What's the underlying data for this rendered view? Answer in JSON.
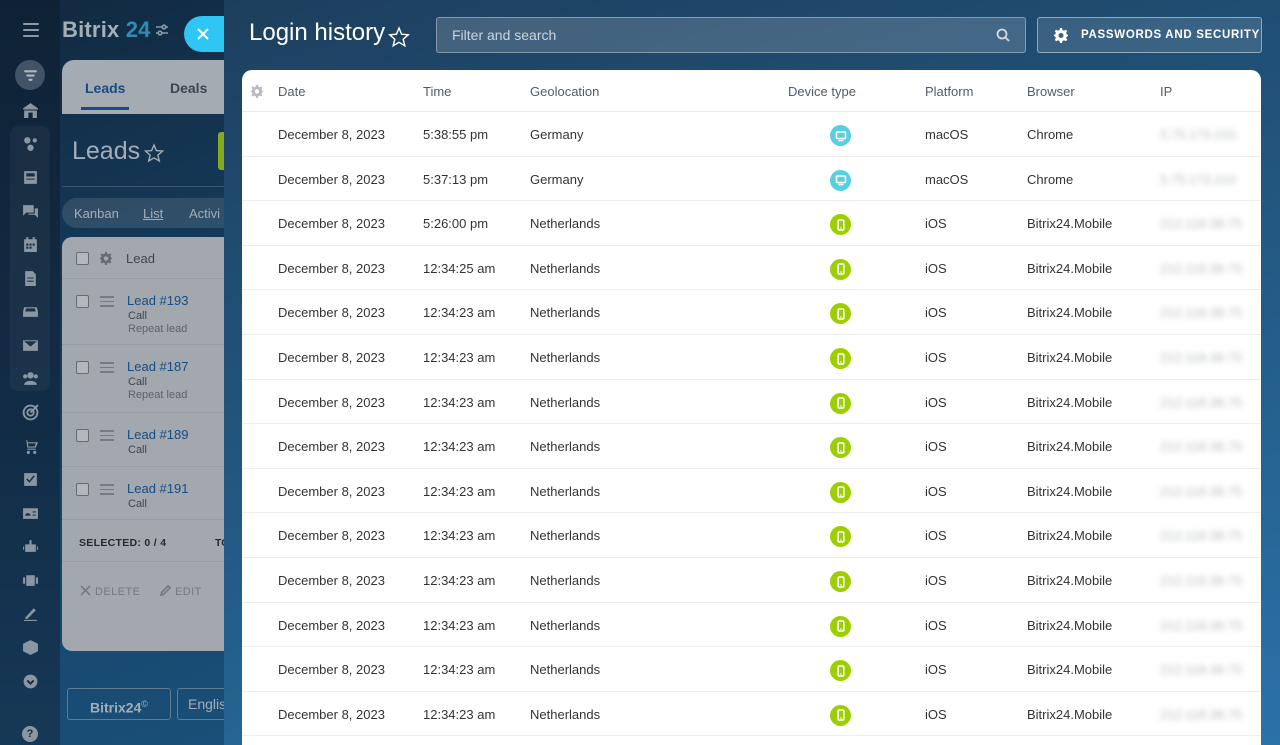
{
  "rail": {
    "icons": [
      "menu-icon",
      "filter-icon",
      "home-icon",
      "crm-icon",
      "feed-icon",
      "chat-icon",
      "calendar-icon",
      "document-icon",
      "inbox-icon",
      "mail-icon",
      "contacts-icon",
      "target-icon",
      "cart-icon",
      "tasks-icon",
      "contact-card-icon",
      "robot-icon",
      "video-icon",
      "signature-icon",
      "cube-icon",
      "more-icon",
      "help-icon"
    ]
  },
  "background": {
    "brand_name": "Bitrix",
    "brand_num": "24",
    "tabs": [
      "Leads",
      "Deals"
    ],
    "page_title": "Leads",
    "views": [
      "Kanban",
      "List",
      "Activi"
    ],
    "grid_header": "Lead",
    "leads": [
      {
        "name": "Lead #193",
        "sub1": "Call",
        "sub2": "Repeat lead"
      },
      {
        "name": "Lead #187",
        "sub1": "Call",
        "sub2": "Repeat lead"
      },
      {
        "name": "Lead #189",
        "sub1": "Call",
        "sub2": ""
      },
      {
        "name": "Lead #191",
        "sub1": "Call",
        "sub2": ""
      }
    ],
    "selected": "SELECTED: 0 / 4",
    "total_fragment": "TO",
    "delete_label": "DELETE",
    "edit_label": "EDIT",
    "footer_brand": "Bitrix24",
    "footer_brand_mark": "©",
    "footer_lang": "Englis",
    "help": "?"
  },
  "slider": {
    "title": "Login history",
    "search_placeholder": "Filter and search",
    "security_button": "PASSWORDS AND SECURITY",
    "columns": [
      "Date",
      "Time",
      "Geolocation",
      "Device type",
      "Platform",
      "Browser",
      "IP"
    ],
    "rows": [
      {
        "date": "December 8, 2023",
        "time": "5:38:55 pm",
        "geo": "Germany",
        "device": "desktop",
        "platform": "macOS",
        "browser": "Chrome",
        "ip": "5.75.173.210"
      },
      {
        "date": "December 8, 2023",
        "time": "5:37:13 pm",
        "geo": "Germany",
        "device": "desktop",
        "platform": "macOS",
        "browser": "Chrome",
        "ip": "5.75.173.210"
      },
      {
        "date": "December 8, 2023",
        "time": "5:26:00 pm",
        "geo": "Netherlands",
        "device": "mobile",
        "platform": "iOS",
        "browser": "Bitrix24.Mobile",
        "ip": "212.118.38.75"
      },
      {
        "date": "December 8, 2023",
        "time": "12:34:25 am",
        "geo": "Netherlands",
        "device": "mobile",
        "platform": "iOS",
        "browser": "Bitrix24.Mobile",
        "ip": "212.118.38.75"
      },
      {
        "date": "December 8, 2023",
        "time": "12:34:23 am",
        "geo": "Netherlands",
        "device": "mobile",
        "platform": "iOS",
        "browser": "Bitrix24.Mobile",
        "ip": "212.118.38.75"
      },
      {
        "date": "December 8, 2023",
        "time": "12:34:23 am",
        "geo": "Netherlands",
        "device": "mobile",
        "platform": "iOS",
        "browser": "Bitrix24.Mobile",
        "ip": "212.118.38.75"
      },
      {
        "date": "December 8, 2023",
        "time": "12:34:23 am",
        "geo": "Netherlands",
        "device": "mobile",
        "platform": "iOS",
        "browser": "Bitrix24.Mobile",
        "ip": "212.118.38.75"
      },
      {
        "date": "December 8, 2023",
        "time": "12:34:23 am",
        "geo": "Netherlands",
        "device": "mobile",
        "platform": "iOS",
        "browser": "Bitrix24.Mobile",
        "ip": "212.118.38.75"
      },
      {
        "date": "December 8, 2023",
        "time": "12:34:23 am",
        "geo": "Netherlands",
        "device": "mobile",
        "platform": "iOS",
        "browser": "Bitrix24.Mobile",
        "ip": "212.118.38.75"
      },
      {
        "date": "December 8, 2023",
        "time": "12:34:23 am",
        "geo": "Netherlands",
        "device": "mobile",
        "platform": "iOS",
        "browser": "Bitrix24.Mobile",
        "ip": "212.118.38.75"
      },
      {
        "date": "December 8, 2023",
        "time": "12:34:23 am",
        "geo": "Netherlands",
        "device": "mobile",
        "platform": "iOS",
        "browser": "Bitrix24.Mobile",
        "ip": "212.118.38.75"
      },
      {
        "date": "December 8, 2023",
        "time": "12:34:23 am",
        "geo": "Netherlands",
        "device": "mobile",
        "platform": "iOS",
        "browser": "Bitrix24.Mobile",
        "ip": "212.118.38.75"
      },
      {
        "date": "December 8, 2023",
        "time": "12:34:23 am",
        "geo": "Netherlands",
        "device": "mobile",
        "platform": "iOS",
        "browser": "Bitrix24.Mobile",
        "ip": "212.118.38.75"
      },
      {
        "date": "December 8, 2023",
        "time": "12:34:23 am",
        "geo": "Netherlands",
        "device": "mobile",
        "platform": "iOS",
        "browser": "Bitrix24.Mobile",
        "ip": "212.118.38.75"
      }
    ]
  },
  "colors": {
    "accent_blue": "#2066b0",
    "close_button": "#2fc6f6",
    "desktop_badge": "#55d0e0",
    "mobile_badge": "#9dcf00",
    "brand_green": "#bbed21"
  }
}
